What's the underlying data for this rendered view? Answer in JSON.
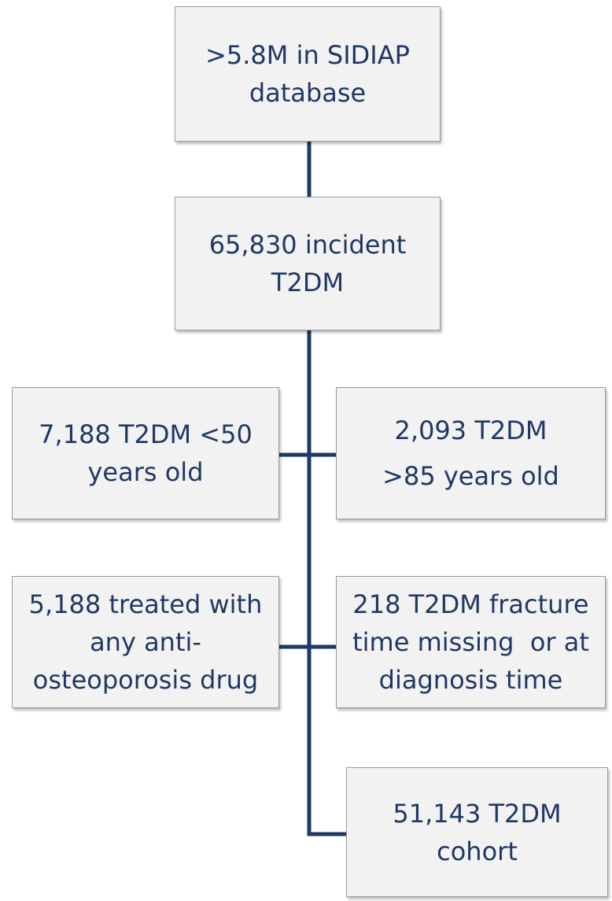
{
  "nodes": [
    {
      "lines": [
        ">5.8M in SIDIAP",
        "database"
      ]
    },
    {
      "lines": [
        "65,830 incident",
        "T2DM"
      ]
    },
    {
      "lines": [
        "7,188 T2DM <50",
        "years old"
      ]
    },
    {
      "lines": [
        "2,093 T2DM",
        ">85 years old"
      ]
    },
    {
      "lines": [
        "5,188 treated with",
        "any anti-",
        "osteoporosis drug"
      ]
    },
    {
      "lines": [
        "218 T2DM fracture",
        "time missing  or at",
        "diagnosis time"
      ]
    },
    {
      "lines": [
        "51,143 T2DM",
        "cohort"
      ]
    }
  ]
}
